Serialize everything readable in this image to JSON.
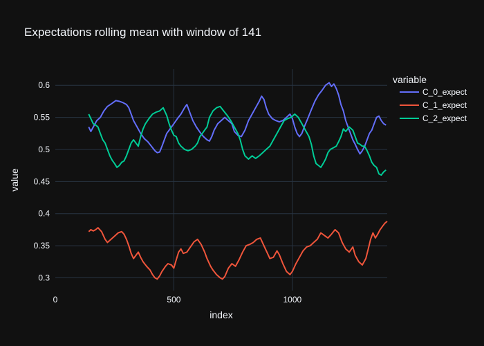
{
  "chart_data": {
    "type": "line",
    "title": "Expectations rolling mean with window of 141",
    "xlabel": "index",
    "ylabel": "value",
    "xlim": [
      0,
      1400
    ],
    "ylim": [
      0.28,
      0.625
    ],
    "x_ticks": [
      0,
      500,
      1000
    ],
    "x_tick_labels": [
      "0",
      "500",
      "1000"
    ],
    "y_ticks": [
      0.3,
      0.35,
      0.4,
      0.45,
      0.5,
      0.55,
      0.6
    ],
    "y_tick_labels": [
      "0.3",
      "0.35",
      "0.4",
      "0.45",
      "0.5",
      "0.55",
      "0.6"
    ],
    "grid": true,
    "legend": {
      "title": "variable",
      "placement": "top-right"
    },
    "series": [
      {
        "name": "C_0_expect",
        "color": "#636efa",
        "points": [
          [
            141,
            0.535
          ],
          [
            150,
            0.528
          ],
          [
            160,
            0.535
          ],
          [
            175,
            0.545
          ],
          [
            190,
            0.55
          ],
          [
            205,
            0.56
          ],
          [
            220,
            0.567
          ],
          [
            240,
            0.572
          ],
          [
            255,
            0.576
          ],
          [
            270,
            0.575
          ],
          [
            285,
            0.573
          ],
          [
            300,
            0.57
          ],
          [
            310,
            0.565
          ],
          [
            320,
            0.555
          ],
          [
            330,
            0.545
          ],
          [
            345,
            0.535
          ],
          [
            360,
            0.525
          ],
          [
            375,
            0.517
          ],
          [
            390,
            0.512
          ],
          [
            405,
            0.505
          ],
          [
            420,
            0.498
          ],
          [
            430,
            0.495
          ],
          [
            440,
            0.496
          ],
          [
            450,
            0.505
          ],
          [
            460,
            0.515
          ],
          [
            470,
            0.525
          ],
          [
            480,
            0.53
          ],
          [
            490,
            0.535
          ],
          [
            500,
            0.54
          ],
          [
            515,
            0.548
          ],
          [
            530,
            0.555
          ],
          [
            545,
            0.565
          ],
          [
            555,
            0.57
          ],
          [
            565,
            0.56
          ],
          [
            580,
            0.545
          ],
          [
            595,
            0.535
          ],
          [
            610,
            0.527
          ],
          [
            625,
            0.52
          ],
          [
            640,
            0.515
          ],
          [
            650,
            0.513
          ],
          [
            660,
            0.52
          ],
          [
            670,
            0.53
          ],
          [
            685,
            0.54
          ],
          [
            700,
            0.545
          ],
          [
            715,
            0.55
          ],
          [
            730,
            0.545
          ],
          [
            745,
            0.54
          ],
          [
            755,
            0.528
          ],
          [
            770,
            0.522
          ],
          [
            785,
            0.52
          ],
          [
            800,
            0.53
          ],
          [
            815,
            0.545
          ],
          [
            830,
            0.555
          ],
          [
            845,
            0.565
          ],
          [
            860,
            0.575
          ],
          [
            870,
            0.583
          ],
          [
            880,
            0.578
          ],
          [
            890,
            0.565
          ],
          [
            900,
            0.555
          ],
          [
            915,
            0.548
          ],
          [
            930,
            0.545
          ],
          [
            945,
            0.543
          ],
          [
            960,
            0.545
          ],
          [
            975,
            0.55
          ],
          [
            990,
            0.555
          ],
          [
            1000,
            0.548
          ],
          [
            1010,
            0.535
          ],
          [
            1020,
            0.525
          ],
          [
            1030,
            0.52
          ],
          [
            1040,
            0.525
          ],
          [
            1050,
            0.535
          ],
          [
            1065,
            0.548
          ],
          [
            1080,
            0.562
          ],
          [
            1095,
            0.575
          ],
          [
            1110,
            0.585
          ],
          [
            1125,
            0.592
          ],
          [
            1140,
            0.6
          ],
          [
            1155,
            0.604
          ],
          [
            1165,
            0.598
          ],
          [
            1175,
            0.602
          ],
          [
            1185,
            0.595
          ],
          [
            1195,
            0.585
          ],
          [
            1205,
            0.57
          ],
          [
            1215,
            0.56
          ],
          [
            1225,
            0.545
          ],
          [
            1235,
            0.535
          ],
          [
            1245,
            0.525
          ],
          [
            1255,
            0.515
          ],
          [
            1265,
            0.508
          ],
          [
            1275,
            0.5
          ],
          [
            1285,
            0.493
          ],
          [
            1295,
            0.498
          ],
          [
            1305,
            0.505
          ],
          [
            1315,
            0.515
          ],
          [
            1325,
            0.525
          ],
          [
            1335,
            0.53
          ],
          [
            1345,
            0.54
          ],
          [
            1355,
            0.55
          ],
          [
            1365,
            0.552
          ],
          [
            1375,
            0.545
          ],
          [
            1385,
            0.54
          ],
          [
            1395,
            0.538
          ]
        ]
      },
      {
        "name": "C_1_expect",
        "color": "#ef553b",
        "points": [
          [
            141,
            0.372
          ],
          [
            150,
            0.375
          ],
          [
            160,
            0.373
          ],
          [
            170,
            0.375
          ],
          [
            180,
            0.378
          ],
          [
            195,
            0.372
          ],
          [
            210,
            0.36
          ],
          [
            220,
            0.355
          ],
          [
            235,
            0.36
          ],
          [
            250,
            0.365
          ],
          [
            265,
            0.37
          ],
          [
            280,
            0.372
          ],
          [
            290,
            0.368
          ],
          [
            300,
            0.36
          ],
          [
            310,
            0.35
          ],
          [
            320,
            0.338
          ],
          [
            330,
            0.33
          ],
          [
            340,
            0.335
          ],
          [
            350,
            0.34
          ],
          [
            360,
            0.332
          ],
          [
            370,
            0.325
          ],
          [
            385,
            0.318
          ],
          [
            400,
            0.312
          ],
          [
            410,
            0.305
          ],
          [
            420,
            0.3
          ],
          [
            430,
            0.298
          ],
          [
            440,
            0.303
          ],
          [
            450,
            0.31
          ],
          [
            465,
            0.318
          ],
          [
            475,
            0.322
          ],
          [
            490,
            0.32
          ],
          [
            500,
            0.315
          ],
          [
            510,
            0.328
          ],
          [
            520,
            0.34
          ],
          [
            530,
            0.345
          ],
          [
            540,
            0.338
          ],
          [
            555,
            0.34
          ],
          [
            570,
            0.348
          ],
          [
            585,
            0.356
          ],
          [
            600,
            0.36
          ],
          [
            615,
            0.352
          ],
          [
            630,
            0.34
          ],
          [
            640,
            0.33
          ],
          [
            655,
            0.318
          ],
          [
            665,
            0.312
          ],
          [
            680,
            0.305
          ],
          [
            695,
            0.3
          ],
          [
            705,
            0.298
          ],
          [
            715,
            0.302
          ],
          [
            730,
            0.315
          ],
          [
            745,
            0.322
          ],
          [
            760,
            0.318
          ],
          [
            775,
            0.328
          ],
          [
            790,
            0.34
          ],
          [
            805,
            0.35
          ],
          [
            820,
            0.352
          ],
          [
            835,
            0.355
          ],
          [
            850,
            0.36
          ],
          [
            865,
            0.362
          ],
          [
            880,
            0.35
          ],
          [
            895,
            0.338
          ],
          [
            905,
            0.33
          ],
          [
            920,
            0.332
          ],
          [
            935,
            0.342
          ],
          [
            945,
            0.336
          ],
          [
            960,
            0.322
          ],
          [
            975,
            0.31
          ],
          [
            990,
            0.305
          ],
          [
            1000,
            0.31
          ],
          [
            1015,
            0.322
          ],
          [
            1030,
            0.332
          ],
          [
            1045,
            0.342
          ],
          [
            1060,
            0.348
          ],
          [
            1075,
            0.35
          ],
          [
            1090,
            0.355
          ],
          [
            1105,
            0.36
          ],
          [
            1120,
            0.37
          ],
          [
            1135,
            0.366
          ],
          [
            1150,
            0.362
          ],
          [
            1165,
            0.368
          ],
          [
            1180,
            0.375
          ],
          [
            1195,
            0.37
          ],
          [
            1210,
            0.355
          ],
          [
            1225,
            0.345
          ],
          [
            1240,
            0.34
          ],
          [
            1255,
            0.348
          ],
          [
            1265,
            0.335
          ],
          [
            1280,
            0.325
          ],
          [
            1295,
            0.32
          ],
          [
            1310,
            0.33
          ],
          [
            1320,
            0.345
          ],
          [
            1330,
            0.36
          ],
          [
            1340,
            0.37
          ],
          [
            1350,
            0.362
          ],
          [
            1360,
            0.368
          ],
          [
            1370,
            0.375
          ],
          [
            1380,
            0.38
          ],
          [
            1390,
            0.385
          ],
          [
            1400,
            0.388
          ]
        ]
      },
      {
        "name": "C_2_expect",
        "color": "#00cc96",
        "points": [
          [
            141,
            0.555
          ],
          [
            150,
            0.548
          ],
          [
            160,
            0.54
          ],
          [
            170,
            0.538
          ],
          [
            180,
            0.535
          ],
          [
            190,
            0.525
          ],
          [
            200,
            0.515
          ],
          [
            210,
            0.51
          ],
          [
            220,
            0.5
          ],
          [
            230,
            0.49
          ],
          [
            240,
            0.483
          ],
          [
            250,
            0.478
          ],
          [
            260,
            0.472
          ],
          [
            270,
            0.475
          ],
          [
            280,
            0.48
          ],
          [
            290,
            0.482
          ],
          [
            300,
            0.49
          ],
          [
            310,
            0.5
          ],
          [
            320,
            0.51
          ],
          [
            330,
            0.515
          ],
          [
            340,
            0.51
          ],
          [
            350,
            0.505
          ],
          [
            360,
            0.52
          ],
          [
            370,
            0.532
          ],
          [
            380,
            0.54
          ],
          [
            395,
            0.548
          ],
          [
            410,
            0.555
          ],
          [
            425,
            0.558
          ],
          [
            440,
            0.56
          ],
          [
            455,
            0.565
          ],
          [
            470,
            0.553
          ],
          [
            480,
            0.54
          ],
          [
            490,
            0.53
          ],
          [
            500,
            0.522
          ],
          [
            510,
            0.52
          ],
          [
            520,
            0.51
          ],
          [
            530,
            0.505
          ],
          [
            545,
            0.5
          ],
          [
            560,
            0.498
          ],
          [
            575,
            0.5
          ],
          [
            590,
            0.505
          ],
          [
            600,
            0.51
          ],
          [
            610,
            0.52
          ],
          [
            620,
            0.525
          ],
          [
            630,
            0.53
          ],
          [
            640,
            0.535
          ],
          [
            650,
            0.55
          ],
          [
            665,
            0.56
          ],
          [
            680,
            0.565
          ],
          [
            695,
            0.567
          ],
          [
            710,
            0.56
          ],
          [
            725,
            0.553
          ],
          [
            740,
            0.545
          ],
          [
            755,
            0.535
          ],
          [
            770,
            0.525
          ],
          [
            780,
            0.515
          ],
          [
            790,
            0.5
          ],
          [
            800,
            0.49
          ],
          [
            815,
            0.485
          ],
          [
            830,
            0.49
          ],
          [
            845,
            0.486
          ],
          [
            860,
            0.49
          ],
          [
            875,
            0.495
          ],
          [
            890,
            0.5
          ],
          [
            905,
            0.505
          ],
          [
            920,
            0.515
          ],
          [
            935,
            0.525
          ],
          [
            950,
            0.535
          ],
          [
            965,
            0.545
          ],
          [
            980,
            0.548
          ],
          [
            995,
            0.55
          ],
          [
            1010,
            0.555
          ],
          [
            1025,
            0.55
          ],
          [
            1040,
            0.54
          ],
          [
            1055,
            0.53
          ],
          [
            1070,
            0.52
          ],
          [
            1080,
            0.508
          ],
          [
            1090,
            0.49
          ],
          [
            1100,
            0.478
          ],
          [
            1110,
            0.475
          ],
          [
            1120,
            0.472
          ],
          [
            1130,
            0.478
          ],
          [
            1140,
            0.485
          ],
          [
            1150,
            0.495
          ],
          [
            1160,
            0.5
          ],
          [
            1170,
            0.502
          ],
          [
            1185,
            0.505
          ],
          [
            1195,
            0.512
          ],
          [
            1205,
            0.52
          ],
          [
            1215,
            0.532
          ],
          [
            1225,
            0.528
          ],
          [
            1240,
            0.535
          ],
          [
            1255,
            0.53
          ],
          [
            1265,
            0.52
          ],
          [
            1275,
            0.51
          ],
          [
            1285,
            0.508
          ],
          [
            1295,
            0.505
          ],
          [
            1305,
            0.505
          ],
          [
            1315,
            0.498
          ],
          [
            1325,
            0.49
          ],
          [
            1335,
            0.48
          ],
          [
            1345,
            0.475
          ],
          [
            1355,
            0.472
          ],
          [
            1365,
            0.462
          ],
          [
            1375,
            0.46
          ],
          [
            1385,
            0.465
          ],
          [
            1395,
            0.468
          ]
        ]
      }
    ]
  }
}
